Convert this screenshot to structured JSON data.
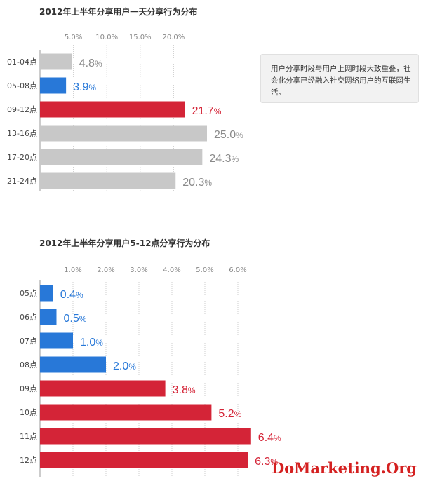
{
  "chart_data": [
    {
      "type": "bar",
      "orientation": "horizontal",
      "title": "2012年上半年分享用户一天分享行为分布",
      "categories": [
        "01-04点",
        "05-08点",
        "09-12点",
        "13-16点",
        "17-20点",
        "21-24点"
      ],
      "values": [
        4.8,
        3.9,
        21.7,
        25.0,
        24.3,
        20.3
      ],
      "value_labels": [
        "4.8",
        "3.9",
        "21.7",
        "25.0",
        "24.3",
        "20.3"
      ],
      "value_unit": "%",
      "bar_colors": [
        "#c8c8c8",
        "#2878d8",
        "#d42437",
        "#c8c8c8",
        "#c8c8c8",
        "#c8c8c8"
      ],
      "label_colors": [
        "#8a8a8a",
        "#2878d8",
        "#d42437",
        "#8a8a8a",
        "#8a8a8a",
        "#8a8a8a"
      ],
      "xticks": [
        "5.0%",
        "10.0%",
        "15.0%",
        "20.0%"
      ],
      "xtick_values": [
        5,
        10,
        15,
        20
      ],
      "xlim": [
        0,
        25
      ],
      "grid": "vertical-dotted"
    },
    {
      "type": "bar",
      "orientation": "horizontal",
      "title": "2012年上半年分享用户5-12点分享行为分布",
      "categories": [
        "05点",
        "06点",
        "07点",
        "08点",
        "09点",
        "10点",
        "11点",
        "12点"
      ],
      "values": [
        0.4,
        0.5,
        1.0,
        2.0,
        3.8,
        5.2,
        6.4,
        6.3
      ],
      "value_labels": [
        "0.4",
        "0.5",
        "1.0",
        "2.0",
        "3.8",
        "5.2",
        "6.4",
        "6.3"
      ],
      "value_unit": "%",
      "bar_colors": [
        "#2878d8",
        "#2878d8",
        "#2878d8",
        "#2878d8",
        "#d42437",
        "#d42437",
        "#d42437",
        "#d42437"
      ],
      "label_colors": [
        "#2878d8",
        "#2878d8",
        "#2878d8",
        "#2878d8",
        "#d42437",
        "#d42437",
        "#d42437",
        "#d42437"
      ],
      "xticks": [
        "1.0%",
        "2.0%",
        "3.0%",
        "4.0%",
        "5.0%",
        "6.0%"
      ],
      "xtick_values": [
        1,
        2,
        3,
        4,
        5,
        6
      ],
      "xlim": [
        0,
        6.4
      ],
      "grid": "vertical-dotted"
    }
  ],
  "note": {
    "text": "用户分享时段与用户上网时段大致重叠，社会化分享已经融入社交网络用户的互联网生活。"
  },
  "watermark": "DoMarketing.Org"
}
